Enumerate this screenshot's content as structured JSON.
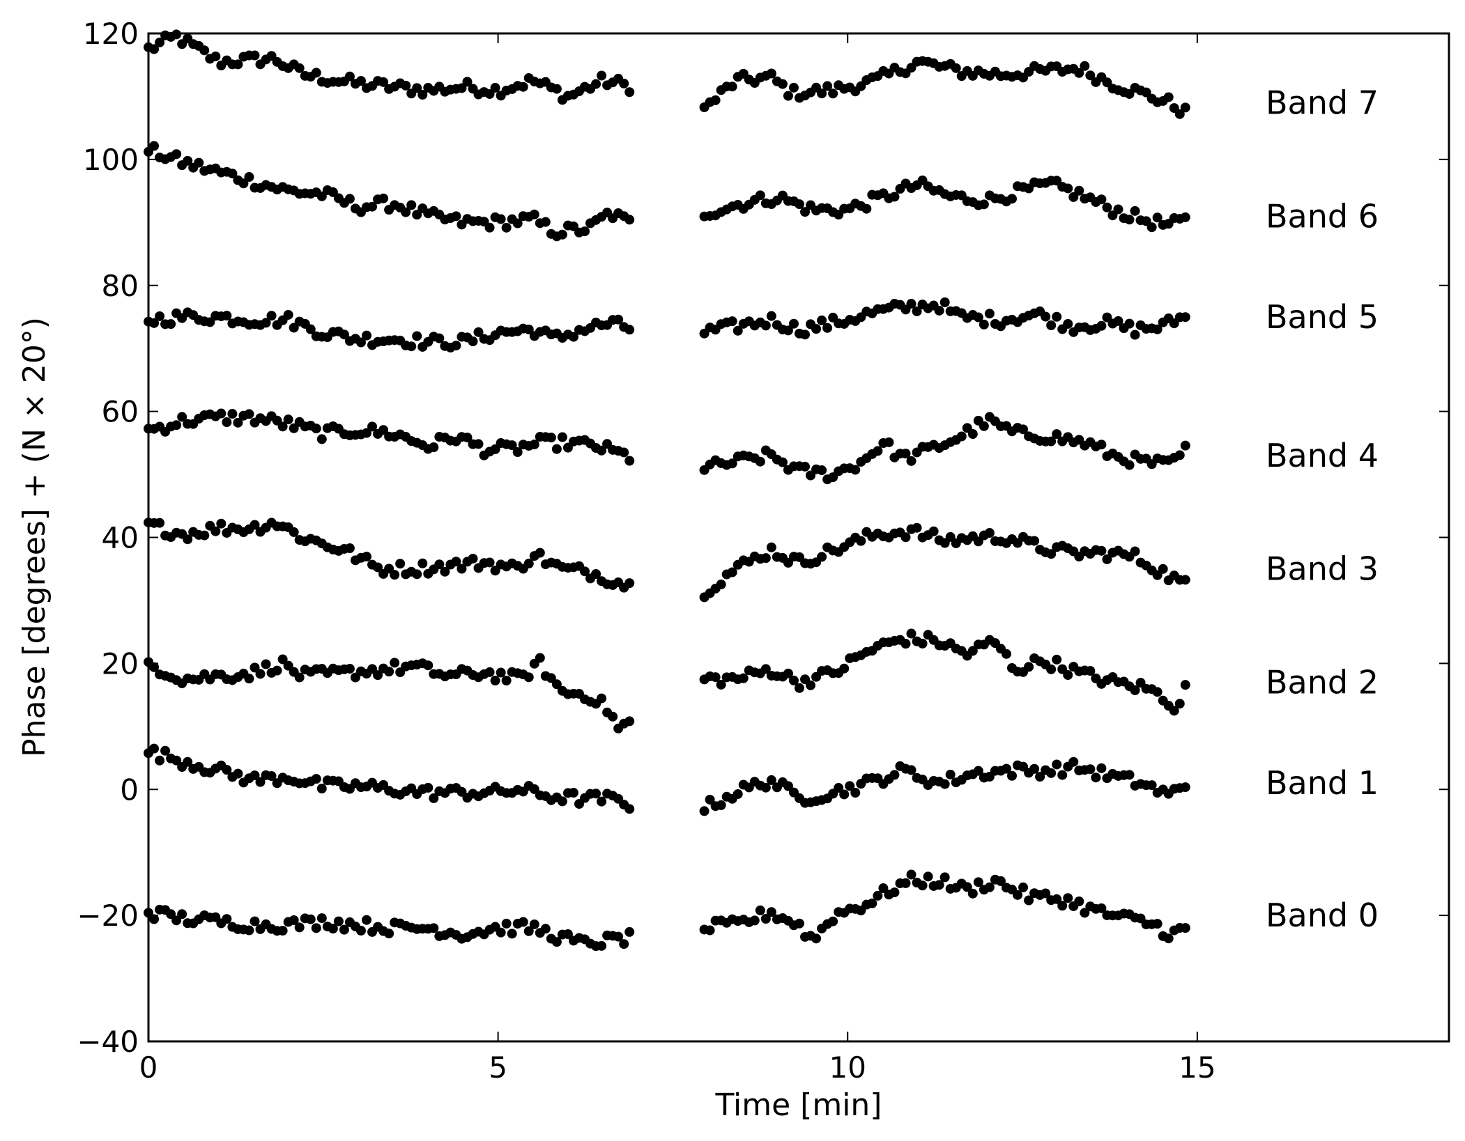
{
  "chart_data": {
    "type": "scatter",
    "xlabel": "Time [min]",
    "ylabel": "Phase [degrees] + (N × 20°)",
    "xlim": [
      0,
      18.6
    ],
    "ylim": [
      -40,
      120
    ],
    "xticks": [
      0,
      5,
      10,
      15
    ],
    "yticks": [
      -40,
      -20,
      0,
      20,
      40,
      60,
      80,
      100,
      120
    ],
    "xtick_labels": [
      "0",
      "5",
      "10",
      "15"
    ],
    "ytick_labels": [
      "−40",
      "−20",
      "0",
      "20",
      "40",
      "60",
      "80",
      "100",
      "120"
    ],
    "grid": false,
    "legend": "none",
    "marker_color": "#000000",
    "segments": [
      {
        "start": 0.0,
        "end": 6.95
      },
      {
        "start": 7.95,
        "end": 14.9
      }
    ],
    "series": [
      {
        "name": "Band 7",
        "label_y": 109,
        "points": [
          [
            0.0,
            117.5
          ],
          [
            0.4,
            119.5
          ],
          [
            1.0,
            115.5
          ],
          [
            1.8,
            116.0
          ],
          [
            2.2,
            113.5
          ],
          [
            3.0,
            112.0
          ],
          [
            3.5,
            111.5
          ],
          [
            4.0,
            111.0
          ],
          [
            4.5,
            111.5
          ],
          [
            5.0,
            111.0
          ],
          [
            5.5,
            112.5
          ],
          [
            6.0,
            110.0
          ],
          [
            6.5,
            112.5
          ],
          [
            6.95,
            111.5
          ],
          [
            7.95,
            108.0
          ],
          [
            8.4,
            112.5
          ],
          [
            8.9,
            113.0
          ],
          [
            9.2,
            110.5
          ],
          [
            9.8,
            111.0
          ],
          [
            10.4,
            112.5
          ],
          [
            11.0,
            115.5
          ],
          [
            11.6,
            114.0
          ],
          [
            12.2,
            113.5
          ],
          [
            12.8,
            114.0
          ],
          [
            13.3,
            114.5
          ],
          [
            13.8,
            112.0
          ],
          [
            14.2,
            110.5
          ],
          [
            14.6,
            109.0
          ],
          [
            14.9,
            107.0
          ]
        ]
      },
      {
        "name": "Band 6",
        "label_y": 91,
        "points": [
          [
            0.0,
            101.5
          ],
          [
            0.5,
            99.5
          ],
          [
            1.0,
            98.0
          ],
          [
            1.5,
            96.5
          ],
          [
            2.0,
            95.0
          ],
          [
            2.5,
            94.5
          ],
          [
            3.0,
            92.5
          ],
          [
            3.5,
            93.0
          ],
          [
            4.0,
            91.0
          ],
          [
            4.5,
            90.0
          ],
          [
            5.0,
            90.0
          ],
          [
            5.5,
            90.5
          ],
          [
            5.8,
            88.5
          ],
          [
            6.3,
            89.0
          ],
          [
            6.6,
            91.5
          ],
          [
            6.95,
            89.5
          ],
          [
            7.95,
            91.5
          ],
          [
            8.5,
            93.0
          ],
          [
            9.0,
            94.0
          ],
          [
            9.5,
            92.0
          ],
          [
            10.0,
            92.0
          ],
          [
            10.5,
            94.0
          ],
          [
            11.0,
            96.0
          ],
          [
            11.5,
            94.0
          ],
          [
            12.0,
            93.5
          ],
          [
            12.5,
            95.0
          ],
          [
            12.9,
            96.0
          ],
          [
            13.3,
            94.5
          ],
          [
            13.8,
            92.0
          ],
          [
            14.2,
            90.5
          ],
          [
            14.6,
            89.5
          ],
          [
            14.9,
            90.5
          ]
        ]
      },
      {
        "name": "Band 5",
        "label_y": 75,
        "points": [
          [
            0.0,
            74.5
          ],
          [
            0.5,
            75.0
          ],
          [
            1.0,
            75.0
          ],
          [
            1.5,
            74.5
          ],
          [
            2.0,
            74.5
          ],
          [
            2.5,
            72.5
          ],
          [
            3.0,
            71.5
          ],
          [
            3.5,
            71.5
          ],
          [
            4.0,
            71.0
          ],
          [
            4.5,
            71.0
          ],
          [
            5.0,
            72.5
          ],
          [
            5.5,
            73.0
          ],
          [
            5.8,
            71.5
          ],
          [
            6.2,
            73.0
          ],
          [
            6.6,
            74.0
          ],
          [
            6.95,
            73.0
          ],
          [
            7.95,
            72.5
          ],
          [
            8.4,
            73.5
          ],
          [
            8.9,
            74.5
          ],
          [
            9.3,
            73.0
          ],
          [
            9.8,
            74.0
          ],
          [
            10.3,
            75.5
          ],
          [
            10.8,
            76.5
          ],
          [
            11.3,
            77.0
          ],
          [
            11.6,
            75.0
          ],
          [
            12.2,
            74.5
          ],
          [
            12.7,
            75.5
          ],
          [
            13.2,
            73.5
          ],
          [
            13.7,
            74.0
          ],
          [
            14.1,
            73.0
          ],
          [
            14.5,
            73.5
          ],
          [
            14.8,
            75.0
          ],
          [
            14.9,
            77.0
          ]
        ]
      },
      {
        "name": "Band 4",
        "label_y": 53,
        "points": [
          [
            0.0,
            57.0
          ],
          [
            0.5,
            58.5
          ],
          [
            1.0,
            59.0
          ],
          [
            1.5,
            59.0
          ],
          [
            2.0,
            58.0
          ],
          [
            2.5,
            56.5
          ],
          [
            3.0,
            57.0
          ],
          [
            3.5,
            56.5
          ],
          [
            4.0,
            54.5
          ],
          [
            4.4,
            56.0
          ],
          [
            4.8,
            54.0
          ],
          [
            5.2,
            54.0
          ],
          [
            5.6,
            55.0
          ],
          [
            6.0,
            55.0
          ],
          [
            6.4,
            54.5
          ],
          [
            6.95,
            52.5
          ],
          [
            7.95,
            51.0
          ],
          [
            8.4,
            52.0
          ],
          [
            8.9,
            53.0
          ],
          [
            9.3,
            50.5
          ],
          [
            9.8,
            50.0
          ],
          [
            10.2,
            52.0
          ],
          [
            10.5,
            55.0
          ],
          [
            10.8,
            52.5
          ],
          [
            11.2,
            54.0
          ],
          [
            11.6,
            56.0
          ],
          [
            12.0,
            58.5
          ],
          [
            12.4,
            56.5
          ],
          [
            12.9,
            56.0
          ],
          [
            13.4,
            55.0
          ],
          [
            13.8,
            53.0
          ],
          [
            14.2,
            52.0
          ],
          [
            14.6,
            51.5
          ],
          [
            14.9,
            54.5
          ]
        ]
      },
      {
        "name": "Band 3",
        "label_y": 35,
        "points": [
          [
            0.0,
            42.0
          ],
          [
            0.5,
            40.5
          ],
          [
            1.0,
            41.5
          ],
          [
            1.5,
            41.5
          ],
          [
            1.8,
            42.5
          ],
          [
            2.2,
            40.0
          ],
          [
            2.8,
            38.0
          ],
          [
            3.3,
            35.0
          ],
          [
            3.8,
            35.0
          ],
          [
            4.3,
            35.5
          ],
          [
            4.8,
            36.0
          ],
          [
            5.3,
            35.0
          ],
          [
            5.5,
            37.5
          ],
          [
            5.9,
            35.0
          ],
          [
            6.3,
            34.5
          ],
          [
            6.7,
            33.0
          ],
          [
            6.95,
            32.0
          ],
          [
            6.98,
            28.0
          ],
          [
            7.95,
            31.5
          ],
          [
            8.4,
            35.0
          ],
          [
            8.9,
            38.0
          ],
          [
            9.3,
            36.0
          ],
          [
            9.8,
            38.0
          ],
          [
            10.4,
            40.5
          ],
          [
            10.9,
            41.0
          ],
          [
            11.4,
            39.5
          ],
          [
            11.9,
            40.0
          ],
          [
            12.3,
            40.0
          ],
          [
            12.7,
            38.5
          ],
          [
            13.2,
            37.5
          ],
          [
            13.7,
            37.5
          ],
          [
            14.1,
            37.0
          ],
          [
            14.5,
            34.5
          ],
          [
            14.9,
            32.0
          ]
        ]
      },
      {
        "name": "Band 2",
        "label_y": 17,
        "points": [
          [
            0.0,
            20.0
          ],
          [
            0.5,
            17.5
          ],
          [
            1.0,
            18.0
          ],
          [
            1.5,
            18.5
          ],
          [
            1.9,
            20.0
          ],
          [
            2.2,
            18.0
          ],
          [
            2.8,
            18.5
          ],
          [
            3.3,
            19.0
          ],
          [
            3.8,
            19.5
          ],
          [
            4.3,
            18.0
          ],
          [
            4.8,
            18.5
          ],
          [
            5.3,
            17.5
          ],
          [
            5.6,
            20.0
          ],
          [
            5.9,
            15.5
          ],
          [
            6.3,
            15.0
          ],
          [
            6.6,
            12.5
          ],
          [
            6.7,
            9.5
          ],
          [
            6.95,
            11.0
          ],
          [
            7.95,
            17.5
          ],
          [
            8.4,
            17.5
          ],
          [
            8.9,
            19.0
          ],
          [
            9.3,
            17.0
          ],
          [
            9.8,
            18.5
          ],
          [
            10.3,
            22.0
          ],
          [
            10.8,
            24.0
          ],
          [
            11.3,
            23.5
          ],
          [
            11.7,
            21.5
          ],
          [
            12.1,
            23.5
          ],
          [
            12.4,
            19.0
          ],
          [
            12.8,
            20.5
          ],
          [
            13.3,
            18.5
          ],
          [
            13.8,
            17.0
          ],
          [
            14.3,
            16.0
          ],
          [
            14.6,
            14.0
          ],
          [
            14.7,
            13.0
          ],
          [
            14.9,
            17.5
          ]
        ]
      },
      {
        "name": "Band 1",
        "label_y": 1,
        "points": [
          [
            0.0,
            6.0
          ],
          [
            0.5,
            4.5
          ],
          [
            1.0,
            3.0
          ],
          [
            1.5,
            1.5
          ],
          [
            2.0,
            2.0
          ],
          [
            2.5,
            0.5
          ],
          [
            3.0,
            0.5
          ],
          [
            3.5,
            0.0
          ],
          [
            4.0,
            -0.5
          ],
          [
            4.5,
            -0.5
          ],
          [
            5.0,
            -0.5
          ],
          [
            5.3,
            0.0
          ],
          [
            5.7,
            -1.0
          ],
          [
            6.2,
            -1.5
          ],
          [
            6.6,
            -1.5
          ],
          [
            6.95,
            -2.5
          ],
          [
            7.95,
            -3.0
          ],
          [
            8.4,
            -0.5
          ],
          [
            8.9,
            1.5
          ],
          [
            9.3,
            -1.5
          ],
          [
            9.8,
            -0.5
          ],
          [
            10.3,
            1.0
          ],
          [
            10.8,
            3.0
          ],
          [
            11.3,
            1.0
          ],
          [
            11.8,
            2.5
          ],
          [
            12.3,
            3.0
          ],
          [
            12.8,
            3.0
          ],
          [
            13.3,
            3.5
          ],
          [
            13.8,
            2.0
          ],
          [
            14.2,
            1.0
          ],
          [
            14.6,
            -1.0
          ],
          [
            14.9,
            1.5
          ]
        ]
      },
      {
        "name": "Band 0",
        "label_y": -20,
        "points": [
          [
            0.0,
            -19.5
          ],
          [
            0.5,
            -20.5
          ],
          [
            1.0,
            -21.0
          ],
          [
            1.5,
            -21.5
          ],
          [
            2.0,
            -21.5
          ],
          [
            2.5,
            -21.0
          ],
          [
            3.0,
            -21.5
          ],
          [
            3.5,
            -22.0
          ],
          [
            4.0,
            -22.0
          ],
          [
            4.5,
            -23.0
          ],
          [
            5.0,
            -22.0
          ],
          [
            5.5,
            -22.0
          ],
          [
            5.9,
            -23.5
          ],
          [
            6.2,
            -24.5
          ],
          [
            6.6,
            -24.0
          ],
          [
            6.95,
            -23.5
          ],
          [
            7.95,
            -22.0
          ],
          [
            8.4,
            -21.5
          ],
          [
            8.9,
            -19.5
          ],
          [
            9.3,
            -21.5
          ],
          [
            9.5,
            -24.0
          ],
          [
            9.8,
            -20.0
          ],
          [
            10.3,
            -18.0
          ],
          [
            10.6,
            -16.0
          ],
          [
            10.9,
            -14.5
          ],
          [
            11.3,
            -14.5
          ],
          [
            11.7,
            -16.0
          ],
          [
            12.1,
            -14.5
          ],
          [
            12.6,
            -17.0
          ],
          [
            13.1,
            -17.5
          ],
          [
            13.6,
            -19.5
          ],
          [
            14.0,
            -20.5
          ],
          [
            14.4,
            -21.5
          ],
          [
            14.6,
            -23.0
          ],
          [
            14.9,
            -22.0
          ]
        ]
      }
    ]
  }
}
